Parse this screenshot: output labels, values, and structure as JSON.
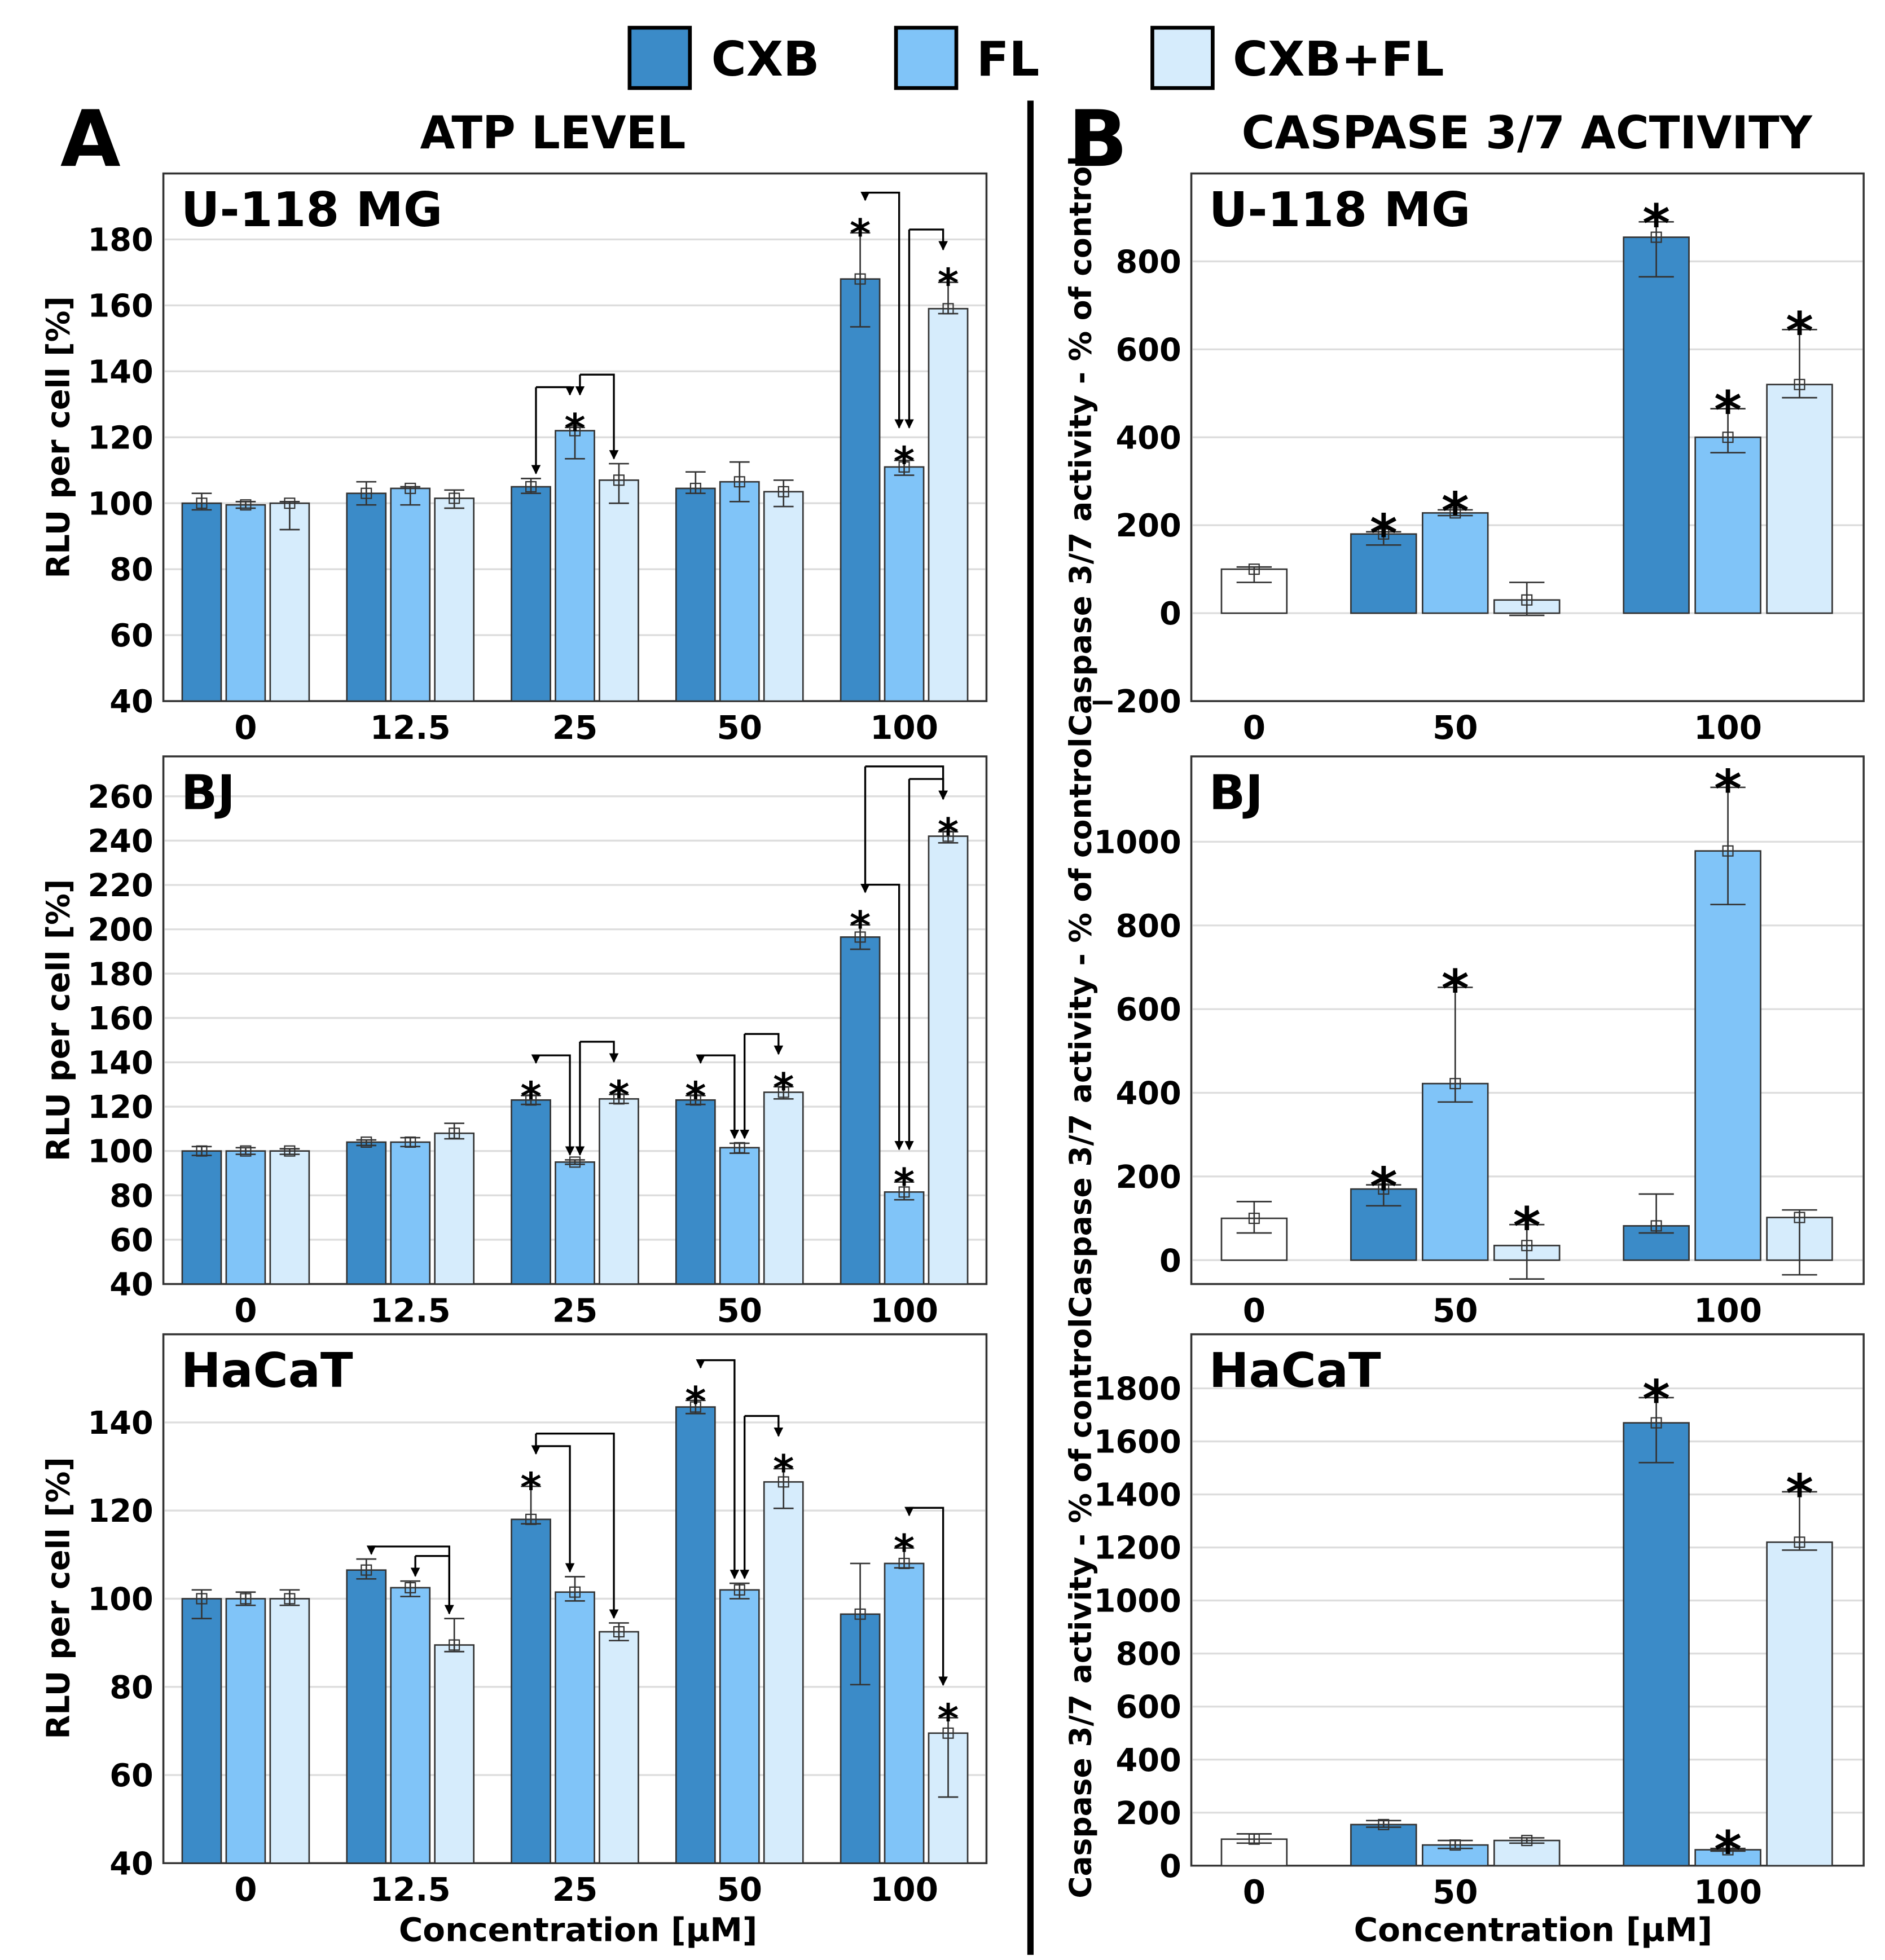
{
  "legend": [
    {
      "label": "CXB",
      "color": "#3b8bc8"
    },
    {
      "label": "FL",
      "color": "#80c4f8"
    },
    {
      "label": "CXB+FL",
      "color": "#d6ecfc"
    }
  ],
  "panel_a": {
    "letter": "A",
    "title": "ATP LEVEL",
    "ylabel": "RLU per cell [%]",
    "xlabel": "Concentration [µM]"
  },
  "panel_b": {
    "letter": "B",
    "title": "CASPASE 3/7 ACTIVITY",
    "ylabel": "Caspase 3/7 activity - % of control",
    "xlabel": "Concentration [µM]"
  },
  "control_color": "#ffffff",
  "chart_data": [
    {
      "type": "bar",
      "panel": "A",
      "title": "U-118 MG",
      "ylabel": "RLU per cell [%]",
      "ylim": [
        40,
        200
      ],
      "yticks": [
        40,
        60,
        80,
        100,
        120,
        140,
        160,
        180
      ],
      "categories": [
        "0",
        "12.5",
        "25",
        "50",
        "100"
      ],
      "series": [
        {
          "name": "CXB",
          "values": [
            100,
            103,
            105,
            104.5,
            168
          ],
          "err": [
            [
              98,
              103
            ],
            [
              99.5,
              106.5
            ],
            [
              103,
              107.5
            ],
            [
              103,
              109.5
            ],
            [
              153.5,
              182
            ]
          ],
          "sig": [
            false,
            false,
            false,
            false,
            true
          ]
        },
        {
          "name": "FL",
          "values": [
            99.5,
            104.5,
            122,
            106.5,
            111
          ],
          "err": [
            [
              98.5,
              100.5
            ],
            [
              99.5,
              105
            ],
            [
              113.5,
              123
            ],
            [
              100.5,
              112.5
            ],
            [
              108.5,
              113
            ]
          ],
          "sig": [
            false,
            false,
            true,
            false,
            true
          ]
        },
        {
          "name": "CXB+FL",
          "values": [
            100,
            101.5,
            107,
            103.5,
            159
          ],
          "err": [
            [
              92,
              100.5
            ],
            [
              98.5,
              104
            ],
            [
              100,
              112
            ],
            [
              99,
              107
            ],
            [
              157.5,
              167
            ]
          ],
          "sig": [
            false,
            false,
            false,
            false,
            true
          ]
        }
      ],
      "comparisons": [
        {
          "category": "25",
          "from": "CXB",
          "to": "FL"
        },
        {
          "category": "25",
          "from": "FL",
          "to": "CXB+FL"
        },
        {
          "category": "100",
          "from": "CXB",
          "to": "FL"
        },
        {
          "category": "100",
          "from": "FL",
          "to": "CXB+FL"
        }
      ]
    },
    {
      "type": "bar",
      "panel": "A",
      "title": "BJ",
      "ylabel": "RLU per cell [%]",
      "ylim": [
        40,
        278
      ],
      "yticks": [
        40,
        60,
        80,
        100,
        120,
        140,
        160,
        180,
        200,
        220,
        240,
        260
      ],
      "categories": [
        "0",
        "12.5",
        "25",
        "50",
        "100"
      ],
      "series": [
        {
          "name": "CXB",
          "values": [
            100,
            104,
            123,
            123,
            196.5
          ],
          "err": [
            [
              98,
              102
            ],
            [
              102.5,
              105
            ],
            [
              121,
              125
            ],
            [
              121,
              125
            ],
            [
              191,
              202
            ]
          ],
          "sig": [
            false,
            false,
            true,
            true,
            true
          ]
        },
        {
          "name": "FL",
          "values": [
            100,
            104,
            95,
            101.5,
            81.5
          ],
          "err": [
            [
              98.5,
              101.5
            ],
            [
              102,
              106
            ],
            [
              94,
              96
            ],
            [
              99,
              103.5
            ],
            [
              78,
              86
            ]
          ],
          "sig": [
            false,
            false,
            false,
            false,
            true
          ]
        },
        {
          "name": "CXB+FL",
          "values": [
            100,
            108,
            123.5,
            126.5,
            242
          ],
          "err": [
            [
              98.5,
              101
            ],
            [
              105.5,
              112.5
            ],
            [
              121.5,
              125.5
            ],
            [
              123.5,
              129
            ],
            [
              239,
              244
            ]
          ],
          "sig": [
            false,
            false,
            true,
            true,
            true
          ]
        }
      ],
      "comparisons": [
        {
          "category": "25",
          "from": "CXB",
          "to": "FL"
        },
        {
          "category": "25",
          "from": "FL",
          "to": "CXB+FL"
        },
        {
          "category": "50",
          "from": "CXB",
          "to": "FL"
        },
        {
          "category": "50",
          "from": "FL",
          "to": "CXB+FL"
        },
        {
          "category": "100",
          "from": "CXB",
          "to": "FL"
        },
        {
          "category": "100",
          "from": "FL",
          "to": "CXB+FL"
        },
        {
          "category": "100",
          "from": "CXB",
          "to": "CXB+FL"
        }
      ]
    },
    {
      "type": "bar",
      "panel": "A",
      "title": "HaCaT",
      "ylabel": "RLU per cell [%]",
      "xlabel": "Concentration [µM]",
      "ylim": [
        40,
        160
      ],
      "yticks": [
        40,
        60,
        80,
        100,
        120,
        140
      ],
      "categories": [
        "0",
        "12.5",
        "25",
        "50",
        "100"
      ],
      "series": [
        {
          "name": "CXB",
          "values": [
            100,
            106.5,
            118,
            143.5,
            96.5
          ],
          "err": [
            [
              95.5,
              102
            ],
            [
              104.5,
              109
            ],
            [
              117,
              125.5
            ],
            [
              142,
              145
            ],
            [
              80.5,
              108
            ]
          ],
          "sig": [
            false,
            false,
            true,
            true,
            false
          ]
        },
        {
          "name": "FL",
          "values": [
            100,
            102.5,
            101.5,
            102,
            108
          ],
          "err": [
            [
              98.5,
              101.5
            ],
            [
              100.5,
              104
            ],
            [
              99.5,
              105
            ],
            [
              100,
              103.5
            ],
            [
              107,
              111.5
            ]
          ],
          "sig": [
            false,
            false,
            false,
            false,
            true
          ]
        },
        {
          "name": "CXB+FL",
          "values": [
            100,
            89.5,
            92.5,
            126.5,
            69.5
          ],
          "err": [
            [
              98.5,
              102
            ],
            [
              88,
              95.5
            ],
            [
              90.5,
              94.5
            ],
            [
              120.5,
              129.5
            ],
            [
              55,
              73
            ]
          ],
          "sig": [
            false,
            false,
            false,
            true,
            true
          ]
        }
      ],
      "comparisons": [
        {
          "category": "12.5",
          "from": "CXB",
          "to": "CXB+FL"
        },
        {
          "category": "12.5",
          "from": "FL",
          "to": "CXB+FL"
        },
        {
          "category": "25",
          "from": "CXB",
          "to": "FL"
        },
        {
          "category": "25",
          "from": "CXB",
          "to": "CXB+FL"
        },
        {
          "category": "50",
          "from": "CXB",
          "to": "FL"
        },
        {
          "category": "50",
          "from": "FL",
          "to": "CXB+FL"
        },
        {
          "category": "100",
          "from": "FL",
          "to": "CXB+FL"
        }
      ]
    },
    {
      "type": "bar",
      "panel": "B",
      "title": "U-118 MG",
      "ylabel": "Caspase 3/7 activity - % of control",
      "ylim": [
        -200,
        1000
      ],
      "yticks": [
        -200,
        0,
        200,
        400,
        600,
        800
      ],
      "categories": [
        "0",
        "50",
        "100"
      ],
      "series": [
        {
          "name": "control",
          "values": [
            100,
            null,
            null
          ],
          "err": [
            [
              70,
              105
            ],
            null,
            null
          ],
          "sig": [
            false,
            false,
            false
          ]
        },
        {
          "name": "CXB",
          "values": [
            null,
            180,
            855
          ],
          "err": [
            null,
            [
              155,
              185
            ],
            [
              765,
              890
            ]
          ],
          "sig": [
            false,
            true,
            true
          ]
        },
        {
          "name": "FL",
          "values": [
            null,
            228,
            400
          ],
          "err": [
            null,
            [
              222,
              235
            ],
            [
              365,
              465
            ]
          ],
          "sig": [
            false,
            true,
            true
          ]
        },
        {
          "name": "CXB+FL",
          "values": [
            null,
            30,
            520
          ],
          "err": [
            null,
            [
              -5,
              70
            ],
            [
              490,
              645
            ]
          ],
          "sig": [
            false,
            false,
            true
          ]
        }
      ]
    },
    {
      "type": "bar",
      "panel": "B",
      "title": "BJ",
      "ylabel": "Caspase 3/7 activity - % of control",
      "ylim": [
        -57,
        1204
      ],
      "yticks": [
        0,
        200,
        400,
        600,
        800,
        1000
      ],
      "categories": [
        "0",
        "50",
        "100"
      ],
      "series": [
        {
          "name": "control",
          "values": [
            100,
            null,
            null
          ],
          "err": [
            [
              65,
              140
            ],
            null,
            null
          ],
          "sig": [
            false,
            false,
            false
          ]
        },
        {
          "name": "CXB",
          "values": [
            null,
            170,
            82
          ],
          "err": [
            null,
            [
              130,
              180
            ],
            [
              65,
              158
            ]
          ],
          "sig": [
            false,
            true,
            false
          ]
        },
        {
          "name": "FL",
          "values": [
            null,
            422,
            978
          ],
          "err": [
            null,
            [
              378,
              652
            ],
            [
              850,
              1130
            ]
          ],
          "sig": [
            false,
            true,
            true
          ]
        },
        {
          "name": "CXB+FL",
          "values": [
            null,
            35,
            102
          ],
          "err": [
            null,
            [
              -45,
              85
            ],
            [
              -35,
              120
            ]
          ],
          "sig": [
            false,
            true,
            false
          ]
        }
      ]
    },
    {
      "type": "bar",
      "panel": "B",
      "title": "HaCaT",
      "ylabel": "Caspase 3/7 activity - % of control",
      "xlabel": "Concentration [µM]",
      "ylim": [
        0,
        2004
      ],
      "yticks": [
        0,
        200,
        400,
        600,
        800,
        1000,
        1200,
        1400,
        1600,
        1800
      ],
      "categories": [
        "0",
        "50",
        "100"
      ],
      "series": [
        {
          "name": "control",
          "values": [
            100,
            null,
            null
          ],
          "err": [
            [
              85,
              120
            ],
            null,
            null
          ],
          "sig": [
            false,
            false,
            false
          ]
        },
        {
          "name": "CXB",
          "values": [
            null,
            155,
            1670
          ],
          "err": [
            null,
            [
              145,
              170
            ],
            [
              1520,
              1765
            ]
          ],
          "sig": [
            false,
            false,
            true
          ]
        },
        {
          "name": "FL",
          "values": [
            null,
            78,
            60
          ],
          "err": [
            null,
            [
              65,
              95
            ],
            [
              55,
              65
            ]
          ],
          "sig": [
            false,
            false,
            true
          ]
        },
        {
          "name": "CXB+FL",
          "values": [
            null,
            95,
            1220
          ],
          "err": [
            null,
            [
              85,
              105
            ],
            [
              1190,
              1410
            ]
          ],
          "sig": [
            false,
            false,
            true
          ]
        }
      ]
    }
  ]
}
